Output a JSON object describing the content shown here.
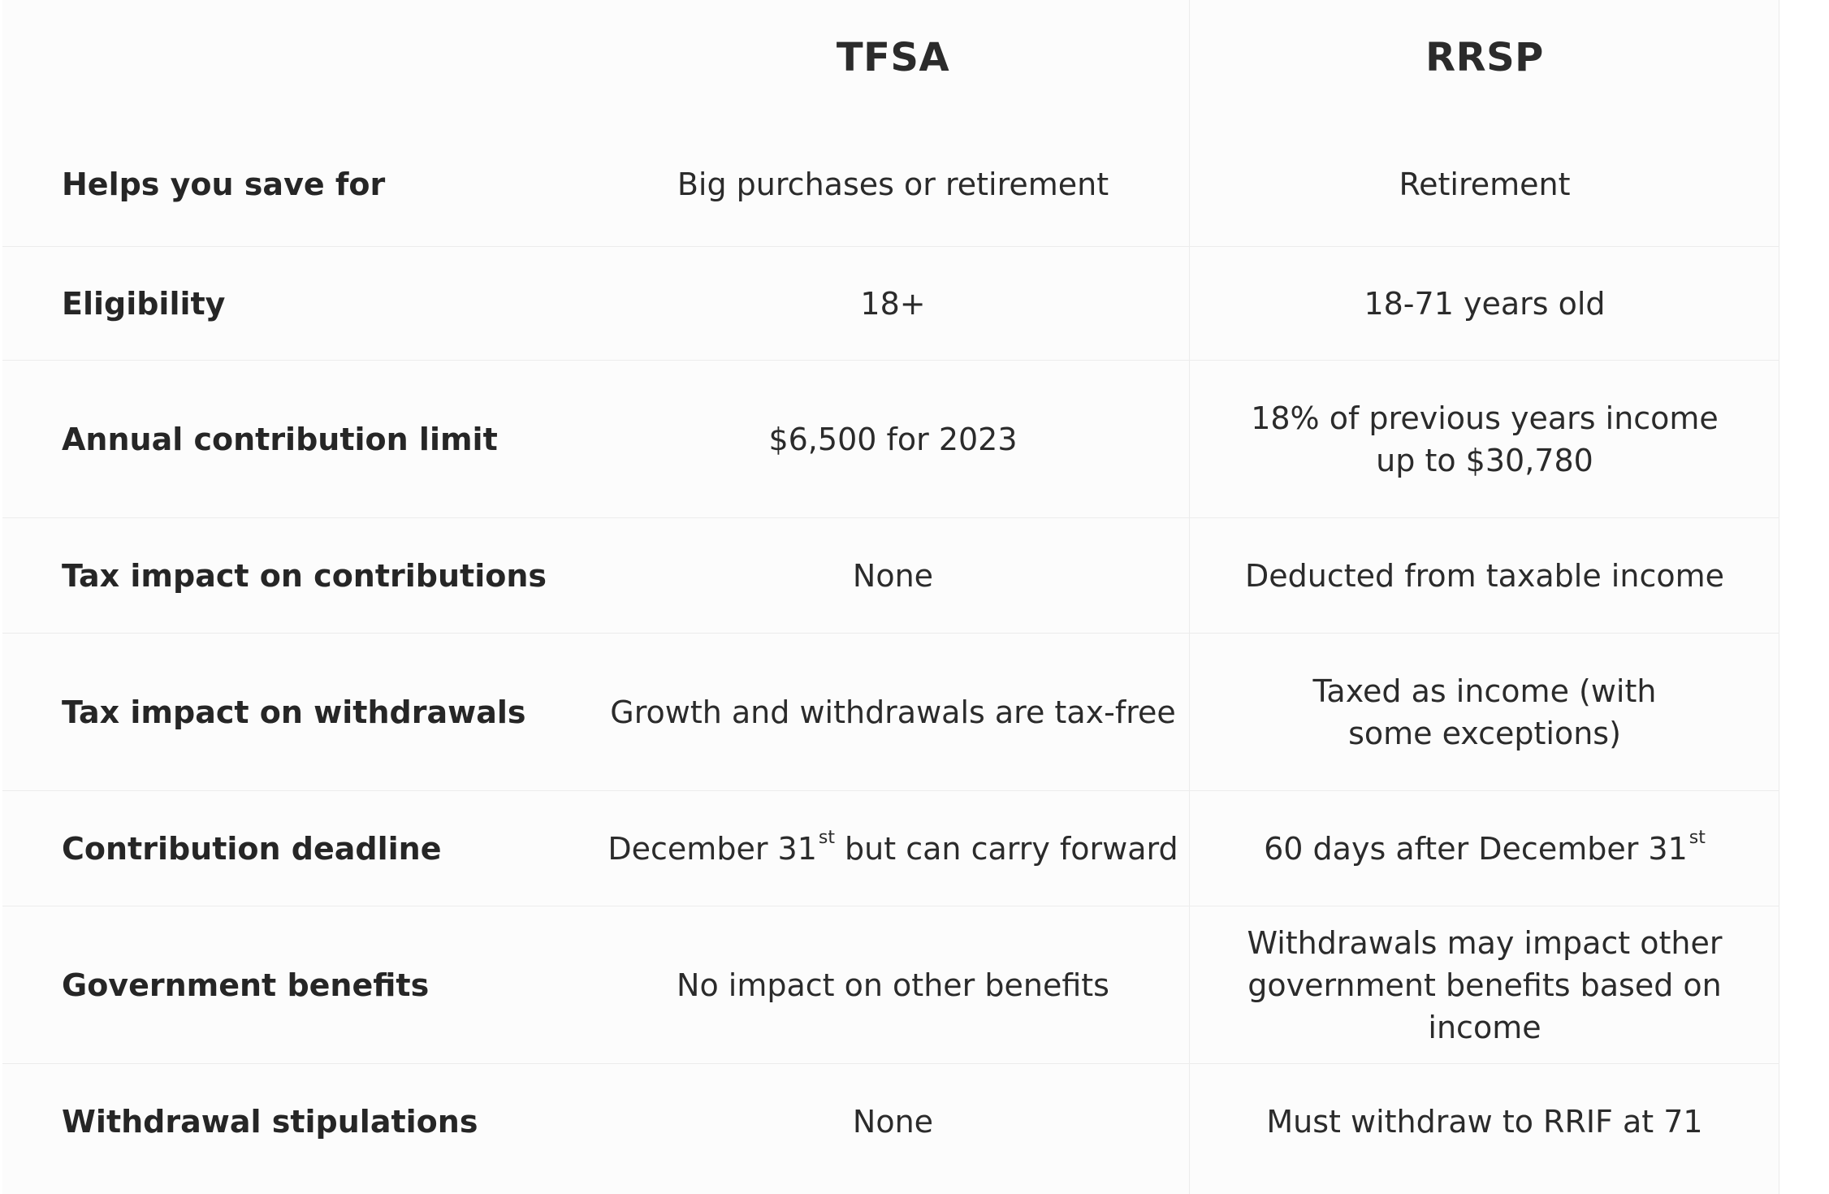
{
  "header": {
    "tfsa": "TFSA",
    "rrsp": "RRSP"
  },
  "rows": [
    {
      "label": "Helps you save for",
      "tfsa": "Big purchases or retirement",
      "rrsp": "Retirement"
    },
    {
      "label": "Eligibility",
      "tfsa": "18+",
      "rrsp": "18-71 years old"
    },
    {
      "label": "Annual contribution limit",
      "tfsa": "$6,500 for 2023",
      "rrsp": "18% of previous years income up to $30,780"
    },
    {
      "label": "Tax impact on contributions",
      "tfsa": "None",
      "rrsp": "Deducted from taxable income"
    },
    {
      "label": "Tax impact on withdrawals",
      "tfsa": "Growth and withdrawals are tax-free",
      "rrsp": "Taxed as income (with some exceptions)"
    },
    {
      "label": "Contribution deadline",
      "tfsa_pre": "December 31",
      "tfsa_sup": "st",
      "tfsa_post": " but can carry forward",
      "rrsp_pre": "60 days after December 31",
      "rrsp_sup": "st"
    },
    {
      "label": "Government benefits",
      "tfsa": "No impact on other benefits",
      "rrsp": "Withdrawals may impact other government benefits based on income"
    },
    {
      "label": "Withdrawal stipulations",
      "tfsa": "None",
      "rrsp": "Must withdraw to RRIF at 71"
    }
  ]
}
